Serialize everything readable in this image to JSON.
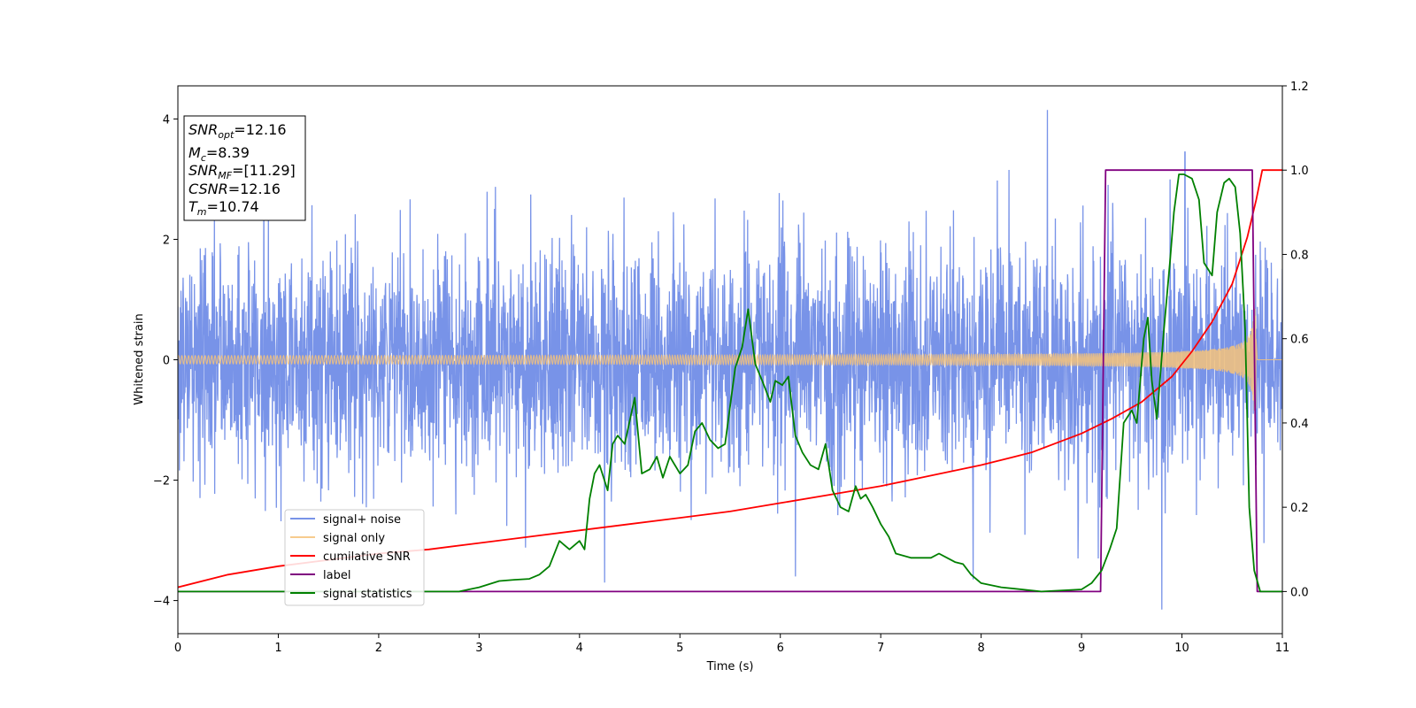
{
  "chart_data": {
    "type": "line",
    "xlabel": "Time (s)",
    "ylabel": "Whitened strain",
    "xlim": [
      0,
      11
    ],
    "ylim": [
      -4.55,
      4.55
    ],
    "y2lim": [
      -0.1,
      1.2
    ],
    "x_ticks": [
      0,
      1,
      2,
      3,
      4,
      5,
      6,
      7,
      8,
      9,
      10,
      11
    ],
    "y_ticks": [
      -4,
      -2,
      0,
      2,
      4
    ],
    "y2_ticks": [
      "0.0",
      "0.2",
      "0.4",
      "0.6",
      "0.8",
      "1.0",
      "1.2"
    ],
    "grid": false,
    "legend_position": "lower-left",
    "info_box": {
      "snr_opt_label": "SNR",
      "snr_opt_sub": "opt",
      "snr_opt_value": "=12.16",
      "mc_label": "M",
      "mc_sub": "c",
      "mc_value": "=8.39",
      "snr_mf_label": "SNR",
      "snr_mf_sub": "MF",
      "snr_mf_value": "=[11.29]",
      "csnr_label": "CSNR",
      "csnr_value": "=12.16",
      "tm_label": "T",
      "tm_sub": "m",
      "tm_value": "=10.74"
    },
    "series": [
      {
        "name": "signal+ noise",
        "axis": "left",
        "color": "#7893e8",
        "style": "noise",
        "sigma": 0.95,
        "extreme_peaks": [
          {
            "x": 8.66,
            "y": 4.15
          },
          {
            "x": 9.8,
            "y": -4.15
          },
          {
            "x": 10.03,
            "y": 3.45
          },
          {
            "x": 4.25,
            "y": -3.7
          },
          {
            "x": 7.92,
            "y": -3.65
          },
          {
            "x": 6.15,
            "y": -3.6
          }
        ]
      },
      {
        "name": "signal only",
        "axis": "left",
        "color": "#f6c37a",
        "style": "chirp",
        "start_amplitude": 0.05,
        "end_amplitude": 0.85,
        "merger_time": 10.74
      },
      {
        "name": "cumilative SNR",
        "axis": "right",
        "color": "#ff0000",
        "x": [
          0,
          0.5,
          1,
          1.5,
          2,
          2.5,
          3,
          3.5,
          4,
          4.5,
          5,
          5.5,
          6,
          6.5,
          7,
          7.5,
          8,
          8.5,
          9,
          9.3,
          9.6,
          9.9,
          10.1,
          10.3,
          10.5,
          10.65,
          10.74,
          10.8,
          11
        ],
        "y": [
          0.01,
          0.04,
          0.06,
          0.075,
          0.09,
          0.1,
          0.115,
          0.13,
          0.145,
          0.16,
          0.175,
          0.19,
          0.21,
          0.23,
          0.25,
          0.275,
          0.3,
          0.33,
          0.375,
          0.41,
          0.45,
          0.51,
          0.57,
          0.64,
          0.73,
          0.84,
          0.93,
          1.0,
          1.0
        ]
      },
      {
        "name": "label",
        "axis": "right",
        "color": "#800080",
        "x": [
          0,
          9.19,
          9.24,
          10.7,
          10.75,
          11
        ],
        "y": [
          0.0,
          0.0,
          1.0,
          1.0,
          0.0,
          0.0
        ]
      },
      {
        "name": "signal statistics",
        "axis": "right",
        "color": "#008000",
        "x": [
          0,
          2.8,
          2.9,
          3.0,
          3.2,
          3.35,
          3.5,
          3.6,
          3.7,
          3.8,
          3.9,
          4.0,
          4.05,
          4.1,
          4.15,
          4.2,
          4.28,
          4.33,
          4.38,
          4.45,
          4.55,
          4.62,
          4.7,
          4.77,
          4.83,
          4.9,
          5.0,
          5.08,
          5.15,
          5.22,
          5.3,
          5.38,
          5.45,
          5.55,
          5.62,
          5.68,
          5.75,
          5.82,
          5.9,
          5.95,
          6.02,
          6.08,
          6.15,
          6.22,
          6.3,
          6.38,
          6.45,
          6.52,
          6.6,
          6.68,
          6.75,
          6.8,
          6.85,
          6.92,
          7.0,
          7.08,
          7.15,
          7.3,
          7.4,
          7.5,
          7.58,
          7.66,
          7.74,
          7.82,
          7.9,
          8.0,
          8.2,
          8.6,
          9.0,
          9.1,
          9.2,
          9.28,
          9.35,
          9.42,
          9.5,
          9.55,
          9.62,
          9.66,
          9.7,
          9.75,
          9.82,
          9.88,
          9.92,
          9.97,
          10.02,
          10.1,
          10.17,
          10.22,
          10.3,
          10.35,
          10.42,
          10.47,
          10.53,
          10.58,
          10.63,
          10.67,
          10.72,
          10.78,
          11
        ],
        "y": [
          0.0,
          0.0,
          0.005,
          0.01,
          0.025,
          0.028,
          0.03,
          0.04,
          0.06,
          0.12,
          0.1,
          0.12,
          0.1,
          0.22,
          0.28,
          0.3,
          0.24,
          0.35,
          0.37,
          0.35,
          0.46,
          0.28,
          0.29,
          0.32,
          0.27,
          0.32,
          0.28,
          0.3,
          0.38,
          0.4,
          0.36,
          0.34,
          0.35,
          0.53,
          0.58,
          0.67,
          0.54,
          0.5,
          0.45,
          0.5,
          0.49,
          0.51,
          0.37,
          0.33,
          0.3,
          0.29,
          0.35,
          0.24,
          0.2,
          0.19,
          0.25,
          0.22,
          0.23,
          0.2,
          0.16,
          0.13,
          0.09,
          0.08,
          0.08,
          0.08,
          0.09,
          0.08,
          0.07,
          0.065,
          0.04,
          0.02,
          0.01,
          0.0,
          0.005,
          0.02,
          0.05,
          0.1,
          0.15,
          0.4,
          0.43,
          0.4,
          0.6,
          0.65,
          0.5,
          0.41,
          0.62,
          0.78,
          0.9,
          0.99,
          0.99,
          0.98,
          0.93,
          0.78,
          0.75,
          0.9,
          0.97,
          0.98,
          0.96,
          0.85,
          0.62,
          0.2,
          0.05,
          0.0,
          0.0
        ]
      }
    ]
  }
}
